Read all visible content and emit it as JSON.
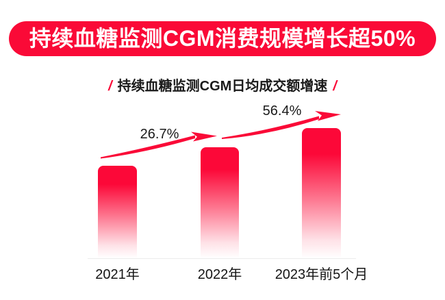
{
  "banner": {
    "title": "持续血糖监测CGM消费规模增长超50%"
  },
  "subtitle": {
    "slash_left": "/",
    "text": "持续血糖监测CGM日均成交额增速",
    "slash_right": "/"
  },
  "colors": {
    "accent_red": "#FA0A37",
    "bar_red": "#FC0838",
    "text_dark": "#1A1A1A",
    "baseline_gray": "#ECECEC",
    "banner_text": "#FFFFFF",
    "background": "#FFFFFF"
  },
  "chart_data": {
    "type": "bar",
    "title": "持续血糖监测CGM日均成交额增速",
    "categories": [
      "2021年",
      "2022年",
      "2023年前5个月"
    ],
    "values": [
      135,
      162,
      190
    ],
    "annotations": [
      {
        "label": "26.7%",
        "between": [
          "2021年",
          "2022年"
        ]
      },
      {
        "label": "56.4%",
        "between": [
          "2022年",
          "2023年前5个月"
        ]
      }
    ],
    "xlabel": "",
    "ylabel": "",
    "grid": false,
    "legend": false
  }
}
